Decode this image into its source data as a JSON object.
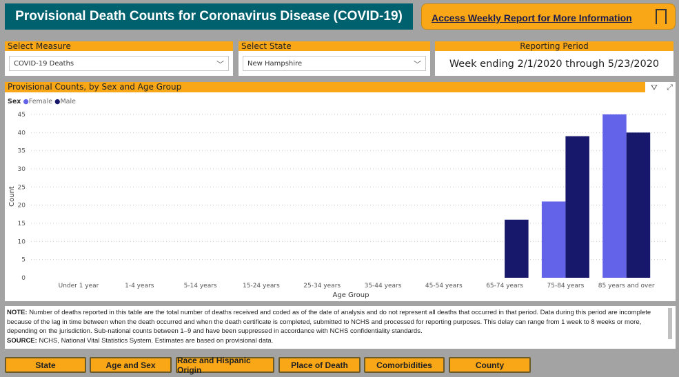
{
  "header": {
    "title": "Provisional Death Counts for Coronavirus Disease (COVID-19)",
    "weekly_link": "Access Weekly Report for More Information"
  },
  "filters": {
    "measure": {
      "label": "Select Measure",
      "value": "COVID-19 Deaths"
    },
    "state": {
      "label": "Select State",
      "value": "New Hampshire"
    },
    "period": {
      "label": "Reporting Period",
      "value": "Week ending 2/1/2020 through 5/23/2020"
    }
  },
  "chart_data": {
    "type": "bar",
    "title": "Provisional Counts, by Sex and Age Group",
    "legend_title": "Sex",
    "legend_placement": "top-left",
    "xlabel": "Age Group",
    "ylabel": "Count",
    "ylim": [
      0,
      45
    ],
    "yticks": [
      0,
      5,
      10,
      15,
      20,
      25,
      30,
      35,
      40,
      45
    ],
    "grid": true,
    "categories": [
      "Under 1 year",
      "1-4 years",
      "5-14 years",
      "15-24 years",
      "25-34 years",
      "35-44 years",
      "45-54 years",
      "65-74 years",
      "75-84 years",
      "85 years and over"
    ],
    "series": [
      {
        "name": "Female",
        "color": "#6363ea",
        "values": [
          null,
          null,
          null,
          null,
          null,
          null,
          null,
          null,
          21,
          45
        ]
      },
      {
        "name": "Male",
        "color": "#17186b",
        "values": [
          null,
          null,
          null,
          null,
          null,
          null,
          null,
          16,
          39,
          40
        ]
      }
    ]
  },
  "note": {
    "note_label": "NOTE:",
    "note_text": " Number of deaths reported in this table are the total number of deaths received and coded as of the date of analysis and do not represent all deaths that occurred in that period. Data during this period are incomplete because of the lag in time between when the death occurred and when the death certificate is completed, submitted to NCHS and processed for reporting purposes. This delay can range from 1 week to 8 weeks or more, depending on the jurisdiction.  Sub-national counts between 1–9 and have been suppressed in accordance with NCHS confidentiality standards.",
    "source_label": "SOURCE:",
    "source_text": " NCHS, National Vital Statistics System. Estimates are based on provisional data."
  },
  "nav": [
    "State",
    "Age and Sex",
    "Race and Hispanic Origin",
    "Place of Death",
    "Comorbidities",
    "County"
  ]
}
